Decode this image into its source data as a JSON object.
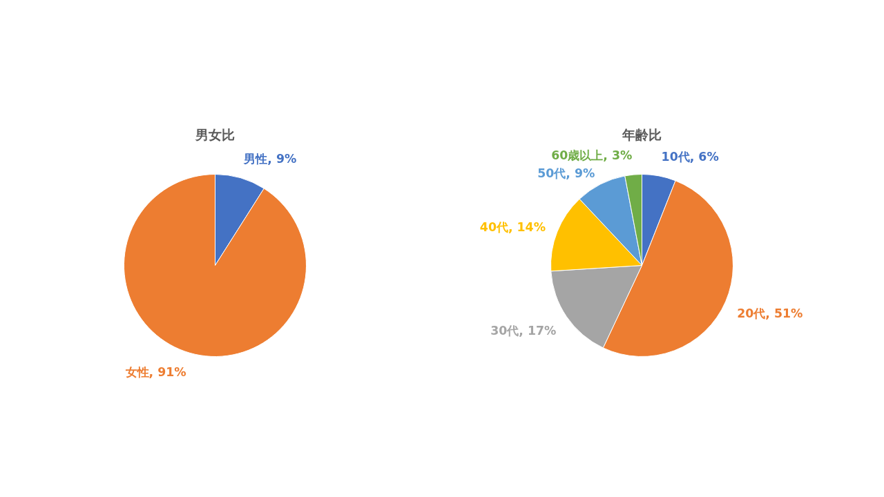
{
  "chart_data": [
    {
      "type": "pie",
      "title": "男女比",
      "categories": [
        "男性",
        "女性"
      ],
      "values": [
        9,
        91
      ],
      "colors": [
        "#4472c4",
        "#ed7d31"
      ],
      "value_labels": [
        "9%",
        "91%"
      ]
    },
    {
      "type": "pie",
      "title": "年齢比",
      "categories": [
        "10代",
        "20代",
        "30代",
        "40代",
        "50代",
        "60歳以上"
      ],
      "values": [
        6,
        51,
        17,
        14,
        9,
        3
      ],
      "colors": [
        "#4472c4",
        "#ed7d31",
        "#a5a5a5",
        "#ffc000",
        "#5b9bd5",
        "#70ad47"
      ],
      "value_labels": [
        "6%",
        "51%",
        "17%",
        "14%",
        "9%",
        "3%"
      ]
    }
  ]
}
